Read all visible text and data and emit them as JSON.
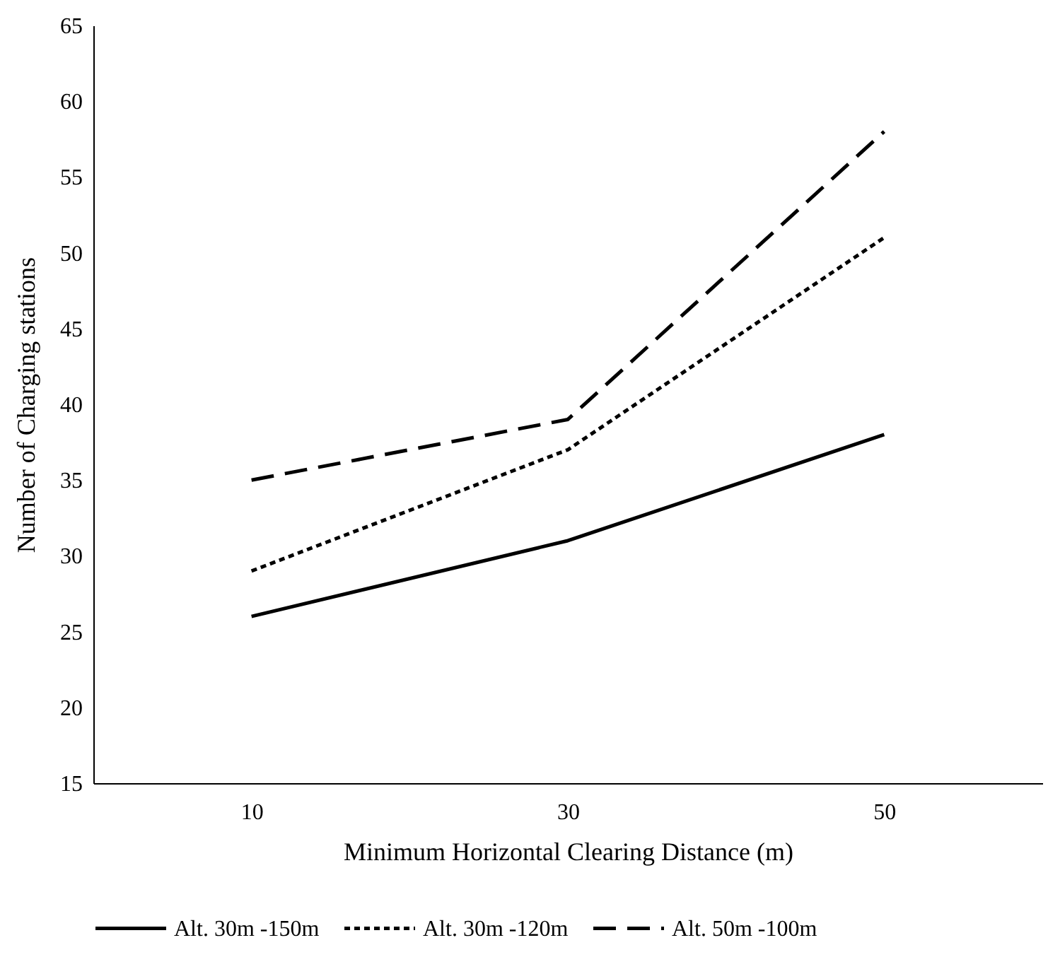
{
  "chart_data": {
    "type": "line",
    "xlabel": "Minimum Horizontal Clearing Distance (m)",
    "ylabel": "Number of Charging stations",
    "categories": [
      "10",
      "30",
      "50"
    ],
    "series": [
      {
        "name": "Alt. 30m -150m",
        "color": "#000000",
        "line_style": "solid",
        "values": [
          26,
          31,
          38
        ]
      },
      {
        "name": "Alt. 30m -120m",
        "color": "#000000",
        "line_style": "dotted",
        "values": [
          29,
          37,
          51
        ]
      },
      {
        "name": "Alt. 50m -100m",
        "color": "#000000",
        "line_style": "dashed",
        "values": [
          35,
          39,
          58
        ]
      }
    ],
    "ylim": [
      15,
      65
    ],
    "yticks": [
      15,
      20,
      25,
      30,
      35,
      40,
      45,
      50,
      55,
      60,
      65
    ],
    "grid": false,
    "legend": "bottom",
    "marker": "none"
  }
}
